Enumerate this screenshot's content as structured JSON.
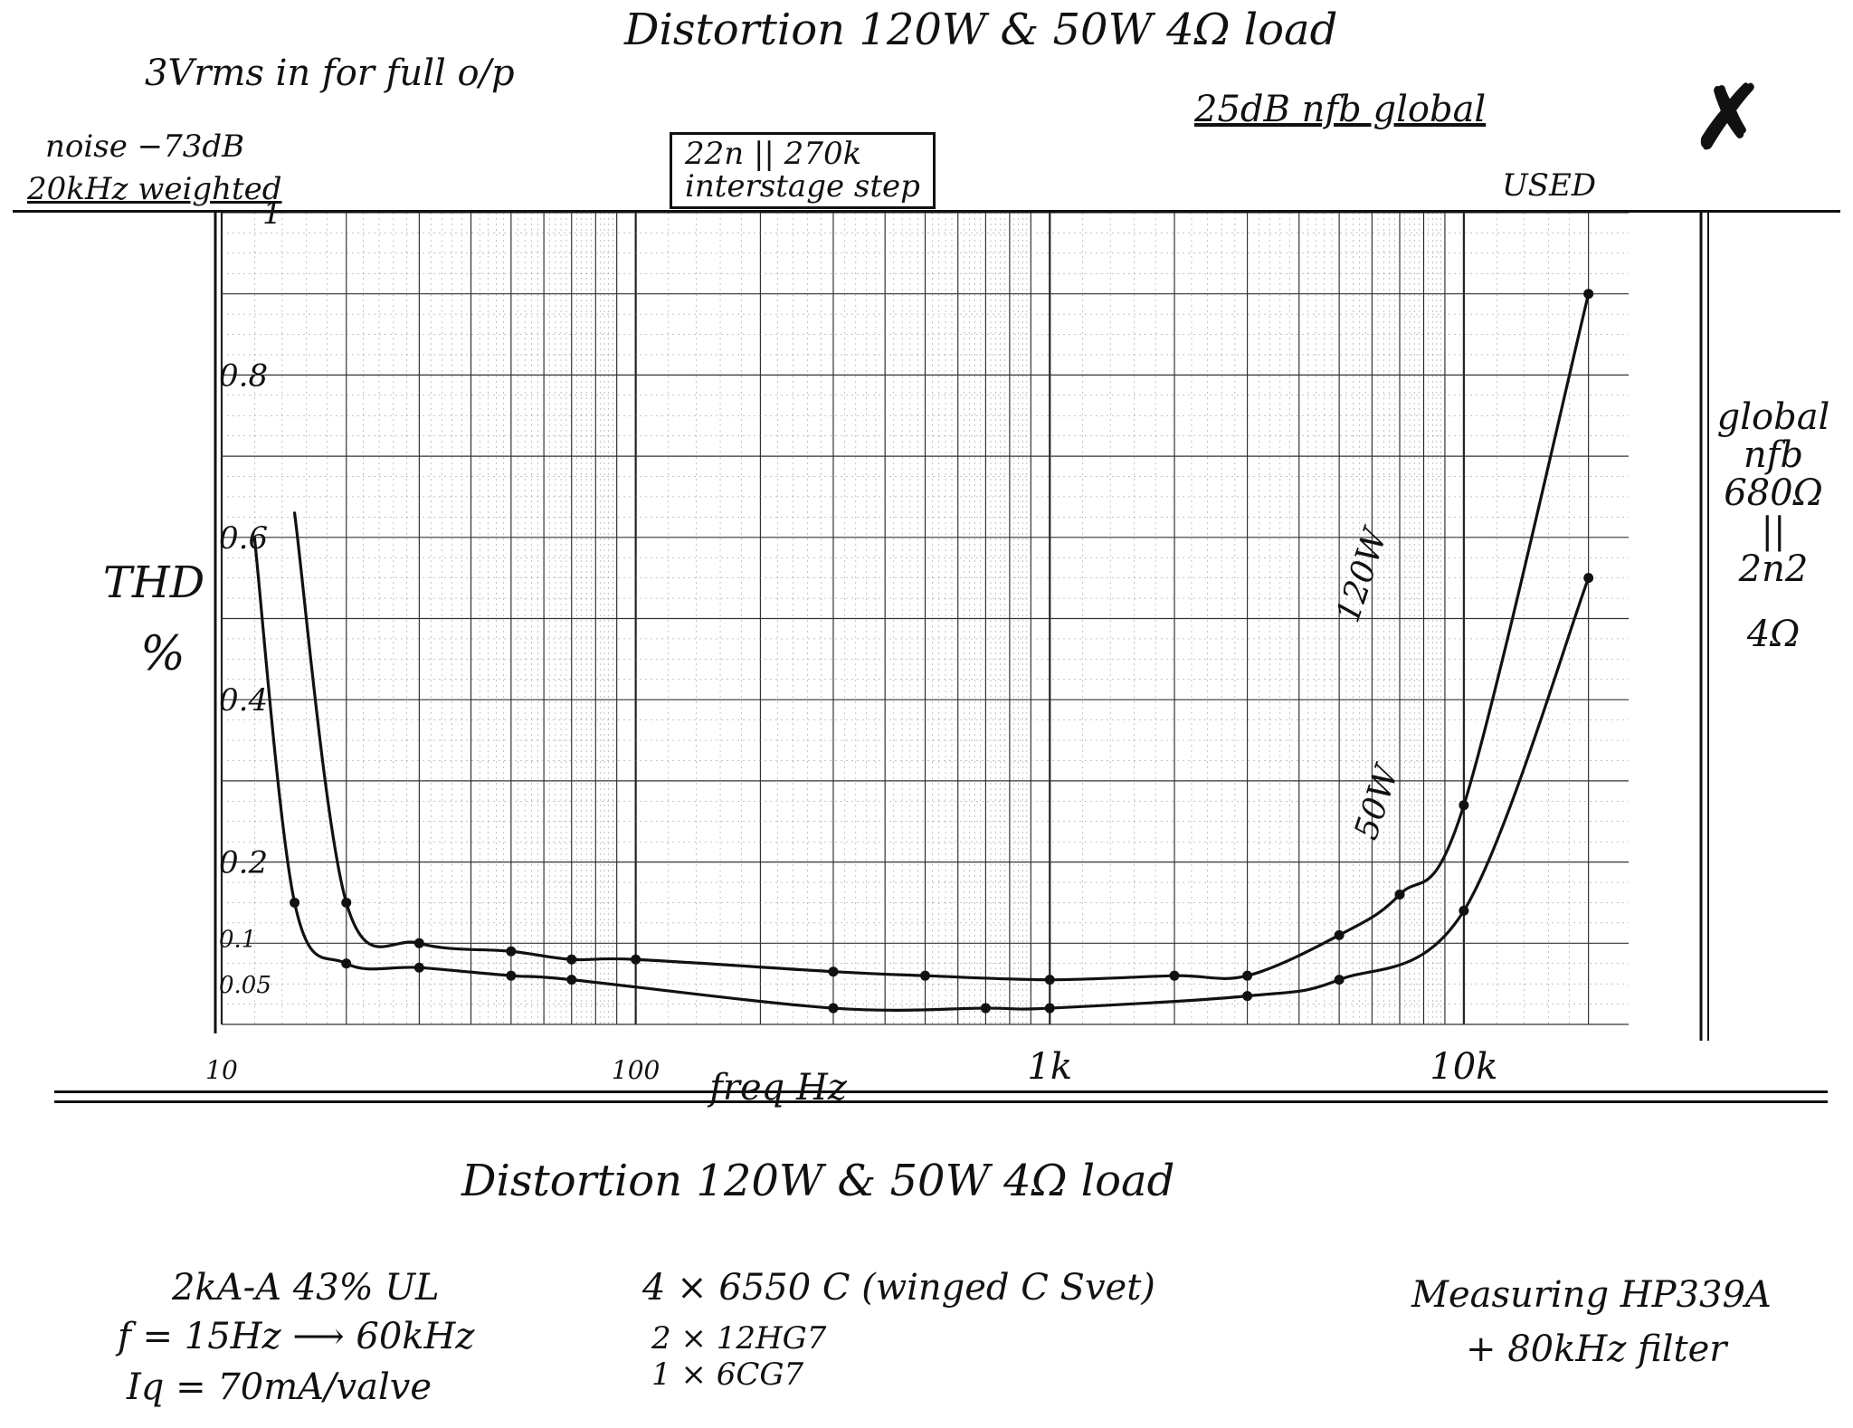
{
  "chart_data": {
    "type": "line",
    "title": "Distortion 120W & 50W   4Ω load",
    "xlabel": "freq Hz",
    "ylabel": "THD %",
    "x_scale": "log",
    "xlim": [
      10,
      25000
    ],
    "ylim": [
      0,
      1.0
    ],
    "x_ticks": [
      {
        "value": 10,
        "label": "10"
      },
      {
        "value": 100,
        "label": "100"
      },
      {
        "value": 1000,
        "label": "1k"
      },
      {
        "value": 10000,
        "label": "10k"
      }
    ],
    "y_ticks": [
      {
        "value": 1.0,
        "label": "1"
      },
      {
        "value": 0.8,
        "label": "0.8"
      },
      {
        "value": 0.6,
        "label": "0.6"
      },
      {
        "value": 0.4,
        "label": "0.4"
      },
      {
        "value": 0.2,
        "label": "0.2"
      },
      {
        "value": 0.1,
        "label": "0.1"
      },
      {
        "value": 0.05,
        "label": "0.05"
      }
    ],
    "grid": true,
    "series": [
      {
        "name": "120W",
        "color": "#111111",
        "x": [
          15,
          20,
          30,
          50,
          70,
          100,
          300,
          500,
          1000,
          2000,
          3000,
          5000,
          7000,
          10000,
          20000
        ],
        "y": [
          0.63,
          0.15,
          0.1,
          0.09,
          0.08,
          0.08,
          0.065,
          0.06,
          0.055,
          0.06,
          0.06,
          0.11,
          0.16,
          0.27,
          0.9
        ]
      },
      {
        "name": "50W",
        "color": "#111111",
        "x": [
          12,
          15,
          20,
          30,
          50,
          70,
          300,
          700,
          1000,
          3000,
          5000,
          10000,
          20000
        ],
        "y": [
          0.6,
          0.15,
          0.075,
          0.07,
          0.06,
          0.055,
          0.02,
          0.02,
          0.02,
          0.035,
          0.055,
          0.14,
          0.55
        ]
      }
    ]
  },
  "notes": {
    "top_title": "Distortion 120W & 50W   4Ω load",
    "input": "3Vrms in for full o/p",
    "noise": "noise −73dB",
    "noise_bw": "20kHz weighted",
    "interstage": "22n || 270k",
    "interstage2": "interstage step",
    "nfb": "25dB nfb global",
    "used": "USED",
    "mark": "✗",
    "right_col": [
      "global",
      "nfb",
      "680Ω",
      "||",
      "2n2",
      "4Ω"
    ],
    "bottom_title": "Distortion 120W & 50W   4Ω load",
    "trafo": "2kA-A  43% UL",
    "freq": "f = 15Hz ⟶ 60kHz",
    "iq": "Iq = 70mA/valve",
    "valves1": "4 × 6550 C (winged C Svet)",
    "valves2": "2 × 12HG7",
    "valves3": "1 × 6CG7",
    "measuring": "Measuring HP339A",
    "filter": "+ 80kHz filter"
  }
}
